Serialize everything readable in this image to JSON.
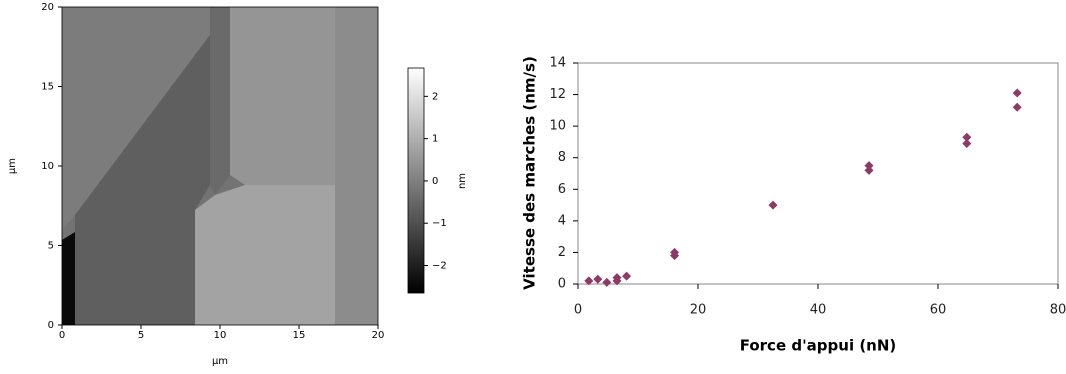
{
  "chart_data": [
    {
      "type": "image",
      "xlabel": "µm",
      "ylabel": "µm",
      "xlim": [
        0,
        20
      ],
      "ylim": [
        0,
        20
      ],
      "xticks": [
        0,
        5,
        10,
        15,
        20
      ],
      "yticks": [
        0,
        5,
        10,
        15,
        20
      ],
      "colorbar": {
        "label": "nm",
        "lim": [
          -2.65,
          2.67
        ],
        "ticks": [
          {
            "value": -2,
            "label": "−2"
          },
          {
            "value": -1,
            "label": "−1"
          },
          0,
          1,
          2
        ]
      }
    },
    {
      "type": "scatter",
      "xlabel": "Force d'appui (nN)",
      "ylabel": "Vitesse des marches (nm/s)",
      "x": [
        1.8,
        3.3,
        4.8,
        6.5,
        6.5,
        8.1,
        16.1,
        16.1,
        32.5,
        48.5,
        48.5,
        64.8,
        64.8,
        73.2,
        73.2
      ],
      "values": [
        0.2,
        0.3,
        0.1,
        0.2,
        0.4,
        0.5,
        2.0,
        1.8,
        5.0,
        7.5,
        7.2,
        9.3,
        8.9,
        12.1,
        11.2
      ],
      "color": "#8e3a66",
      "xlim": [
        0,
        80
      ],
      "ylim": [
        0,
        14
      ],
      "xticks": [
        0,
        20,
        40,
        60,
        80
      ],
      "yticks": [
        0,
        2,
        4,
        6,
        8,
        10,
        12,
        14
      ]
    }
  ]
}
